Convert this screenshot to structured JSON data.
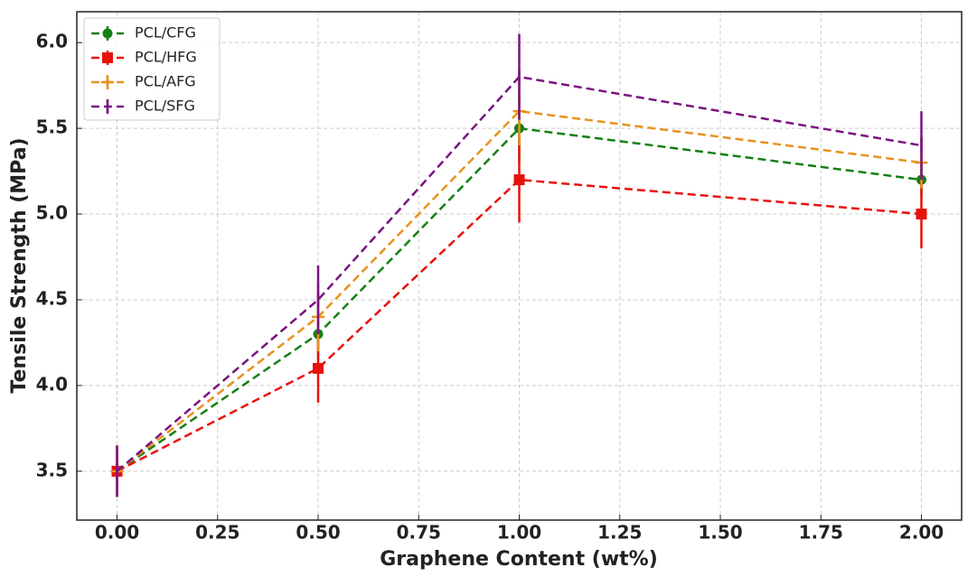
{
  "chart_data": {
    "type": "line",
    "x_label": "Graphene Content (wt%)",
    "y_label": "Tensile Strength (MPa)",
    "x": [
      0,
      0.5,
      1.0,
      2.0
    ],
    "series": [
      {
        "name": "PCL/CFG",
        "color": "#138013",
        "marker": "o",
        "values": [
          3.5,
          4.3,
          5.5,
          5.2
        ],
        "errors": [
          0.1,
          0.15,
          0.2,
          0.1
        ]
      },
      {
        "name": "PCL/HFG",
        "color": "#e8120c",
        "marker": "s",
        "values": [
          3.5,
          4.1,
          5.2,
          5.0
        ],
        "errors": [
          0.15,
          0.2,
          0.25,
          0.2
        ]
      },
      {
        "name": "PCL/AFG",
        "color": "#e8921e",
        "marker": "+",
        "values": [
          3.5,
          4.4,
          5.6,
          5.3
        ],
        "errors": [
          0.15,
          0.2,
          0.2,
          0.15
        ]
      },
      {
        "name": "PCL/SFG",
        "color": "#7a1480",
        "marker": "|",
        "values": [
          3.5,
          4.5,
          5.8,
          5.4
        ],
        "errors": [
          0.15,
          0.2,
          0.25,
          0.2
        ]
      }
    ],
    "xlim": [
      -0.1,
      2.1
    ],
    "ylim": [
      3.215,
      6.18
    ],
    "xticks": [
      {
        "value": 0,
        "label": "0.00"
      },
      {
        "value": 0.25,
        "label": "0.25"
      },
      {
        "value": 0.5,
        "label": "0.50"
      },
      {
        "value": 0.75,
        "label": "0.75"
      },
      {
        "value": 1.0,
        "label": "1.00"
      },
      {
        "value": 1.25,
        "label": "1.25"
      },
      {
        "value": 1.5,
        "label": "1.50"
      },
      {
        "value": 1.75,
        "label": "1.75"
      },
      {
        "value": 2.0,
        "label": "2.00"
      }
    ],
    "yticks": [
      {
        "value": 3.5,
        "label": "3.5"
      },
      {
        "value": 4.0,
        "label": "4.0"
      },
      {
        "value": 4.5,
        "label": "4.5"
      },
      {
        "value": 5.0,
        "label": "5.0"
      },
      {
        "value": 5.5,
        "label": "5.5"
      },
      {
        "value": 6.0,
        "label": "6.0"
      }
    ],
    "grid": true,
    "legend": "upper-left"
  }
}
